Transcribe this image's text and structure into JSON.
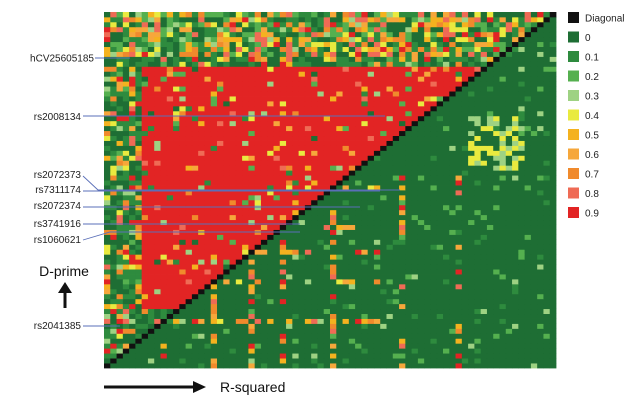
{
  "chart_data": {
    "type": "heatmap",
    "title": "",
    "xlabel": "R-squared",
    "ylabel": "D-prime",
    "upper_triangle_measure": "D-prime",
    "lower_triangle_measure": "R-squared",
    "snp_labels": [
      "hCV25605185",
      "rs2008134",
      "rs2072373",
      "rs7311174",
      "rs2072374",
      "rs3741916",
      "rs1060621",
      "rs2041385"
    ],
    "legend": {
      "entries": [
        {
          "label": "Diagonal",
          "color": "#111111"
        },
        {
          "label": "0",
          "color": "#1e6e34"
        },
        {
          "label": "0.1",
          "color": "#2e8b3e"
        },
        {
          "label": "0.2",
          "color": "#55b04f"
        },
        {
          "label": "0.3",
          "color": "#9ed283"
        },
        {
          "label": "0.4",
          "color": "#e9ea3f"
        },
        {
          "label": "0.5",
          "color": "#f4b21f"
        },
        {
          "label": "0.6",
          "color": "#f6a73b"
        },
        {
          "label": "0.7",
          "color": "#f08a2c"
        },
        {
          "label": "0.8",
          "color": "#ef6b55"
        },
        {
          "label": "0.9",
          "color": "#e22424"
        }
      ],
      "placement": "right"
    }
  }
}
